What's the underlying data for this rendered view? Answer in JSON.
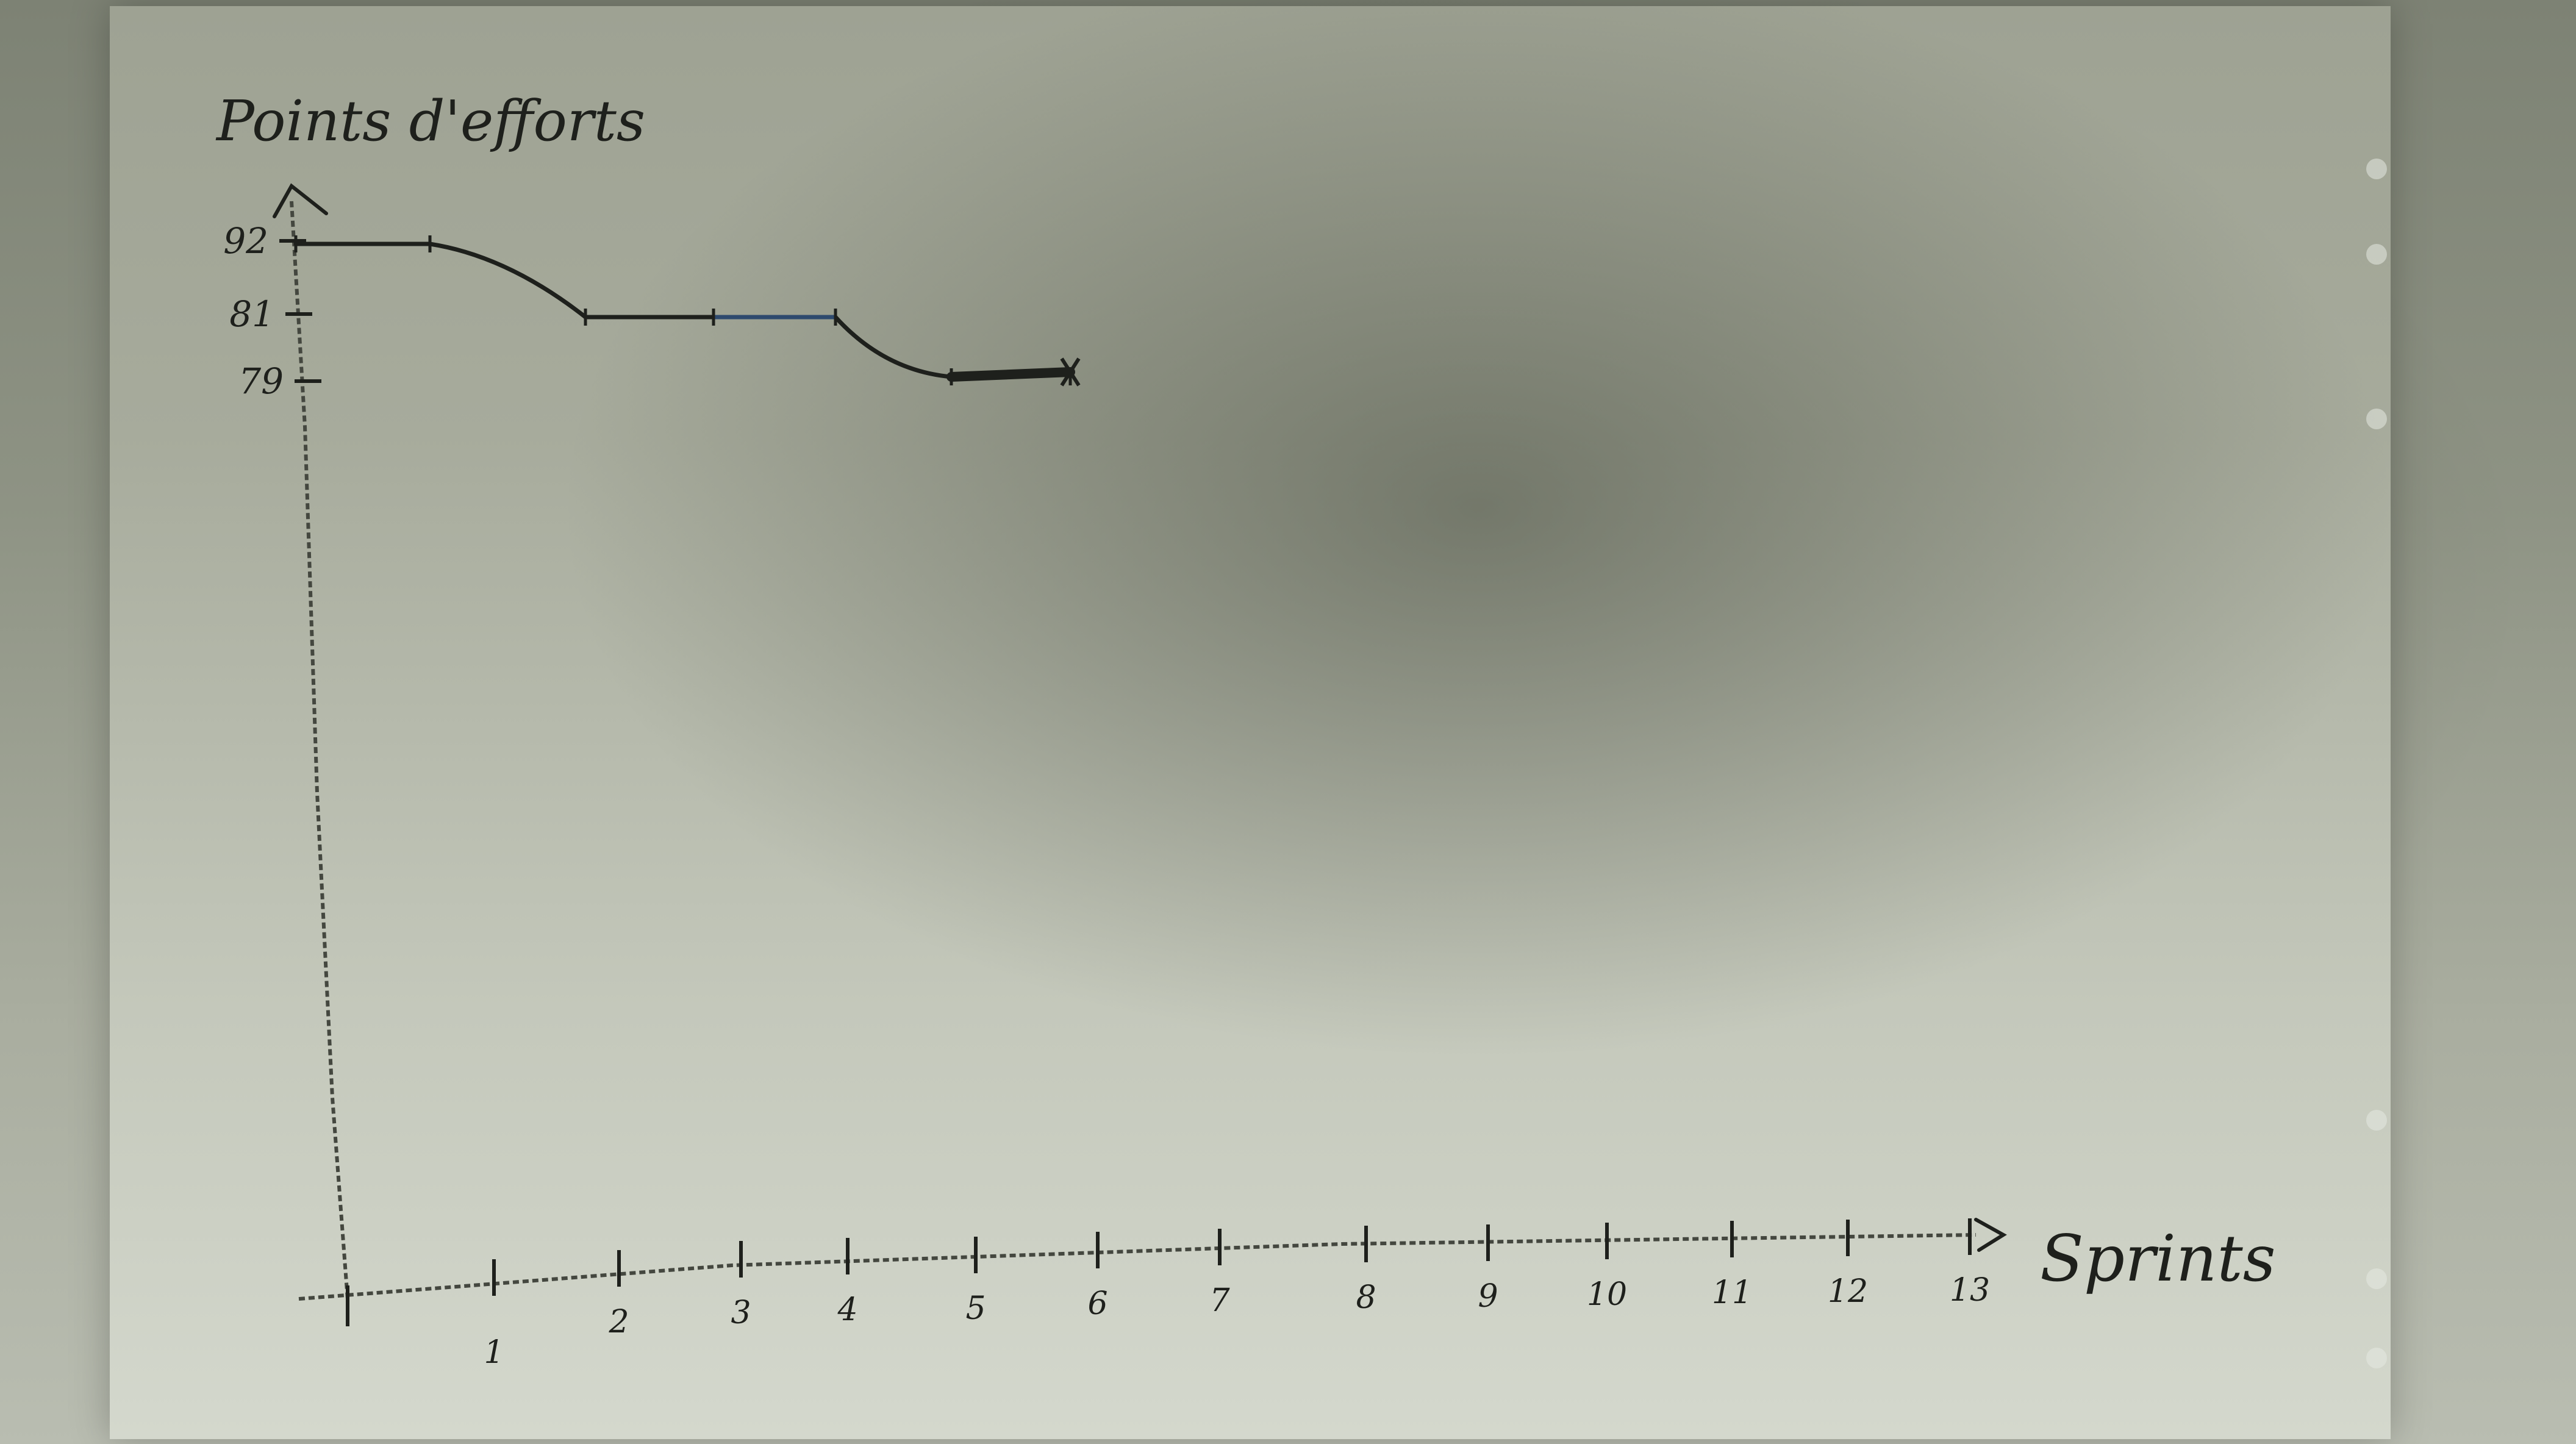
{
  "chart_data": {
    "type": "line",
    "ylabel": "Points d'efforts",
    "xlabel": "Sprints",
    "x_ticks": [
      "1",
      "2",
      "3",
      "4",
      "5",
      "6",
      "7",
      "8",
      "9",
      "10",
      "11",
      "12",
      "13"
    ],
    "y_ticks": [
      "92",
      "81",
      "79"
    ],
    "series": [
      {
        "x": [
          0,
          1,
          2,
          3,
          4,
          5,
          6
        ],
        "y": [
          92,
          92,
          81,
          81,
          81,
          79,
          79
        ]
      }
    ]
  },
  "colors": {
    "ink": "#1e201c",
    "axis_ink": "#44473f",
    "blue_ink": "#2e4a6e"
  }
}
